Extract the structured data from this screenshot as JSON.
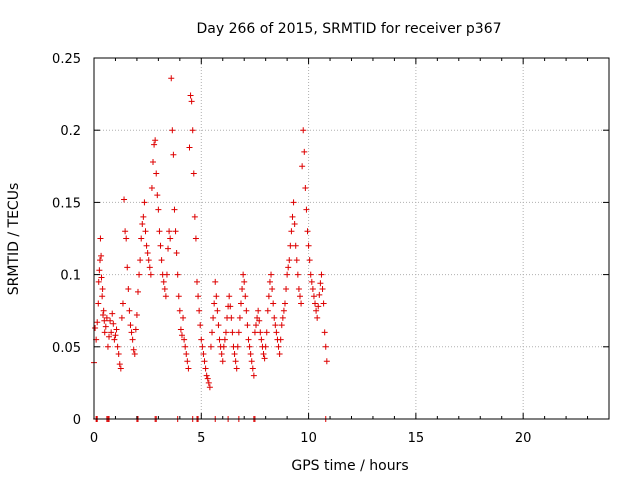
{
  "chart_data": {
    "type": "scatter",
    "title": "Day 266 of 2015, SRMTID for receiver p367",
    "xlabel": "GPS time / hours",
    "ylabel": "SRMTID / TECUs",
    "xlim": [
      0,
      24
    ],
    "ylim": [
      0,
      0.25
    ],
    "grid": true,
    "marker": "+",
    "marker_color": "#dd0000",
    "x_ticks": [
      0,
      5,
      10,
      15,
      20
    ],
    "x_tick_labels": [
      "0",
      "5",
      "10",
      "15",
      "20"
    ],
    "y_ticks": [
      0,
      0.05,
      0.1,
      0.15,
      0.2,
      0.25
    ],
    "y_tick_labels": [
      "0",
      "0.05",
      "0.1",
      "0.15",
      "0.2",
      "0.25"
    ],
    "series": [
      {
        "name": "SRMTID",
        "points": [
          [
            0.0,
            0.039
          ],
          [
            0.05,
            0.063
          ],
          [
            0.1,
            0.055
          ],
          [
            0.15,
            0.067
          ],
          [
            0.2,
            0.08
          ],
          [
            0.22,
            0.095
          ],
          [
            0.25,
            0.103
          ],
          [
            0.28,
            0.11
          ],
          [
            0.3,
            0.125
          ],
          [
            0.33,
            0.113
          ],
          [
            0.35,
            0.098
          ],
          [
            0.38,
            0.085
          ],
          [
            0.4,
            0.09
          ],
          [
            0.42,
            0.072
          ],
          [
            0.45,
            0.075
          ],
          [
            0.48,
            0.068
          ],
          [
            0.5,
            0.06
          ],
          [
            0.55,
            0.064
          ],
          [
            0.6,
            0.07
          ],
          [
            0.65,
            0.05
          ],
          [
            0.7,
            0.057
          ],
          [
            0.75,
            0.068
          ],
          [
            0.8,
            0.06
          ],
          [
            0.85,
            0.073
          ],
          [
            0.9,
            0.066
          ],
          [
            0.95,
            0.055
          ],
          [
            1.0,
            0.058
          ],
          [
            1.05,
            0.062
          ],
          [
            1.1,
            0.05
          ],
          [
            1.15,
            0.045
          ],
          [
            1.2,
            0.038
          ],
          [
            1.25,
            0.035
          ],
          [
            1.3,
            0.07
          ],
          [
            1.35,
            0.08
          ],
          [
            1.4,
            0.152
          ],
          [
            1.45,
            0.13
          ],
          [
            1.5,
            0.125
          ],
          [
            1.55,
            0.105
          ],
          [
            1.6,
            0.09
          ],
          [
            1.65,
            0.075
          ],
          [
            1.7,
            0.065
          ],
          [
            1.75,
            0.06
          ],
          [
            1.8,
            0.055
          ],
          [
            1.85,
            0.048
          ],
          [
            1.9,
            0.045
          ],
          [
            1.95,
            0.062
          ],
          [
            2.0,
            0.072
          ],
          [
            2.05,
            0.088
          ],
          [
            2.1,
            0.1
          ],
          [
            2.15,
            0.11
          ],
          [
            2.2,
            0.125
          ],
          [
            2.25,
            0.135
          ],
          [
            2.3,
            0.14
          ],
          [
            2.35,
            0.15
          ],
          [
            2.4,
            0.13
          ],
          [
            2.45,
            0.12
          ],
          [
            2.5,
            0.115
          ],
          [
            2.55,
            0.11
          ],
          [
            2.6,
            0.105
          ],
          [
            2.65,
            0.1
          ],
          [
            2.7,
            0.16
          ],
          [
            2.75,
            0.178
          ],
          [
            2.8,
            0.19
          ],
          [
            2.85,
            0.193
          ],
          [
            2.9,
            0.17
          ],
          [
            2.95,
            0.155
          ],
          [
            3.0,
            0.145
          ],
          [
            3.05,
            0.13
          ],
          [
            3.1,
            0.12
          ],
          [
            3.15,
            0.11
          ],
          [
            3.2,
            0.1
          ],
          [
            3.25,
            0.095
          ],
          [
            3.3,
            0.09
          ],
          [
            3.35,
            0.085
          ],
          [
            3.4,
            0.1
          ],
          [
            3.45,
            0.118
          ],
          [
            3.5,
            0.13
          ],
          [
            3.55,
            0.125
          ],
          [
            3.6,
            0.236
          ],
          [
            3.65,
            0.2
          ],
          [
            3.7,
            0.183
          ],
          [
            3.75,
            0.145
          ],
          [
            3.8,
            0.13
          ],
          [
            3.85,
            0.115
          ],
          [
            3.9,
            0.1
          ],
          [
            3.95,
            0.085
          ],
          [
            4.0,
            0.075
          ],
          [
            4.05,
            0.062
          ],
          [
            4.1,
            0.058
          ],
          [
            4.15,
            0.07
          ],
          [
            4.2,
            0.055
          ],
          [
            4.25,
            0.05
          ],
          [
            4.3,
            0.045
          ],
          [
            4.35,
            0.04
          ],
          [
            4.4,
            0.035
          ],
          [
            4.45,
            0.188
          ],
          [
            4.5,
            0.224
          ],
          [
            4.55,
            0.22
          ],
          [
            4.6,
            0.2
          ],
          [
            4.65,
            0.17
          ],
          [
            4.7,
            0.14
          ],
          [
            4.75,
            0.125
          ],
          [
            4.8,
            0.095
          ],
          [
            4.85,
            0.085
          ],
          [
            4.9,
            0.075
          ],
          [
            4.95,
            0.065
          ],
          [
            5.0,
            0.055
          ],
          [
            5.05,
            0.05
          ],
          [
            5.1,
            0.045
          ],
          [
            5.15,
            0.04
          ],
          [
            5.2,
            0.035
          ],
          [
            5.25,
            0.03
          ],
          [
            5.3,
            0.028
          ],
          [
            5.35,
            0.025
          ],
          [
            5.4,
            0.022
          ],
          [
            5.45,
            0.05
          ],
          [
            5.5,
            0.06
          ],
          [
            5.55,
            0.07
          ],
          [
            5.6,
            0.08
          ],
          [
            5.65,
            0.095
          ],
          [
            5.7,
            0.085
          ],
          [
            5.75,
            0.075
          ],
          [
            5.8,
            0.065
          ],
          [
            5.85,
            0.055
          ],
          [
            5.9,
            0.05
          ],
          [
            5.95,
            0.045
          ],
          [
            6.0,
            0.04
          ],
          [
            6.05,
            0.05
          ],
          [
            6.1,
            0.055
          ],
          [
            6.15,
            0.06
          ],
          [
            6.2,
            0.07
          ],
          [
            6.25,
            0.078
          ],
          [
            6.3,
            0.085
          ],
          [
            6.35,
            0.078
          ],
          [
            6.4,
            0.07
          ],
          [
            6.45,
            0.06
          ],
          [
            6.5,
            0.05
          ],
          [
            6.55,
            0.045
          ],
          [
            6.6,
            0.04
          ],
          [
            6.65,
            0.035
          ],
          [
            6.7,
            0.05
          ],
          [
            6.75,
            0.06
          ],
          [
            6.8,
            0.07
          ],
          [
            6.85,
            0.08
          ],
          [
            6.9,
            0.09
          ],
          [
            6.95,
            0.1
          ],
          [
            7.0,
            0.095
          ],
          [
            7.05,
            0.085
          ],
          [
            7.1,
            0.075
          ],
          [
            7.15,
            0.065
          ],
          [
            7.2,
            0.055
          ],
          [
            7.25,
            0.05
          ],
          [
            7.3,
            0.045
          ],
          [
            7.35,
            0.04
          ],
          [
            7.4,
            0.035
          ],
          [
            7.45,
            0.03
          ],
          [
            7.5,
            0.06
          ],
          [
            7.55,
            0.065
          ],
          [
            7.6,
            0.07
          ],
          [
            7.65,
            0.075
          ],
          [
            7.7,
            0.068
          ],
          [
            7.75,
            0.06
          ],
          [
            7.8,
            0.055
          ],
          [
            7.85,
            0.05
          ],
          [
            7.9,
            0.045
          ],
          [
            7.95,
            0.042
          ],
          [
            8.0,
            0.05
          ],
          [
            8.05,
            0.06
          ],
          [
            8.1,
            0.075
          ],
          [
            8.15,
            0.085
          ],
          [
            8.2,
            0.095
          ],
          [
            8.25,
            0.1
          ],
          [
            8.3,
            0.09
          ],
          [
            8.35,
            0.08
          ],
          [
            8.4,
            0.07
          ],
          [
            8.45,
            0.065
          ],
          [
            8.5,
            0.06
          ],
          [
            8.55,
            0.055
          ],
          [
            8.6,
            0.05
          ],
          [
            8.65,
            0.045
          ],
          [
            8.7,
            0.055
          ],
          [
            8.75,
            0.065
          ],
          [
            8.8,
            0.07
          ],
          [
            8.85,
            0.075
          ],
          [
            8.9,
            0.08
          ],
          [
            8.95,
            0.09
          ],
          [
            9.0,
            0.1
          ],
          [
            9.05,
            0.105
          ],
          [
            9.1,
            0.11
          ],
          [
            9.15,
            0.12
          ],
          [
            9.2,
            0.13
          ],
          [
            9.25,
            0.14
          ],
          [
            9.3,
            0.15
          ],
          [
            9.35,
            0.135
          ],
          [
            9.4,
            0.12
          ],
          [
            9.45,
            0.11
          ],
          [
            9.5,
            0.1
          ],
          [
            9.55,
            0.09
          ],
          [
            9.6,
            0.085
          ],
          [
            9.65,
            0.08
          ],
          [
            9.7,
            0.175
          ],
          [
            9.75,
            0.2
          ],
          [
            9.8,
            0.185
          ],
          [
            9.85,
            0.16
          ],
          [
            9.9,
            0.145
          ],
          [
            9.95,
            0.13
          ],
          [
            10.0,
            0.12
          ],
          [
            10.05,
            0.11
          ],
          [
            10.1,
            0.1
          ],
          [
            10.15,
            0.095
          ],
          [
            10.2,
            0.09
          ],
          [
            10.25,
            0.085
          ],
          [
            10.3,
            0.08
          ],
          [
            10.35,
            0.075
          ],
          [
            10.4,
            0.07
          ],
          [
            10.45,
            0.078
          ],
          [
            10.5,
            0.086
          ],
          [
            10.55,
            0.094
          ],
          [
            10.6,
            0.1
          ],
          [
            10.65,
            0.09
          ],
          [
            10.7,
            0.08
          ],
          [
            10.75,
            0.06
          ],
          [
            10.8,
            0.05
          ],
          [
            10.85,
            0.04
          ],
          [
            0.1,
            0.0
          ],
          [
            0.12,
            0.0
          ],
          [
            0.15,
            0.0
          ],
          [
            0.6,
            0.0
          ],
          [
            0.65,
            0.0
          ],
          [
            0.7,
            0.0
          ],
          [
            2.0,
            0.0
          ],
          [
            2.05,
            0.0
          ],
          [
            2.85,
            0.0
          ],
          [
            2.9,
            0.0
          ],
          [
            3.9,
            0.0
          ],
          [
            4.6,
            0.0
          ],
          [
            4.8,
            0.0
          ],
          [
            4.85,
            0.0
          ],
          [
            5.65,
            0.0
          ],
          [
            6.25,
            0.0
          ],
          [
            6.75,
            0.0
          ],
          [
            7.45,
            0.0
          ],
          [
            7.5,
            0.0
          ],
          [
            10.8,
            0.0
          ]
        ]
      }
    ]
  }
}
